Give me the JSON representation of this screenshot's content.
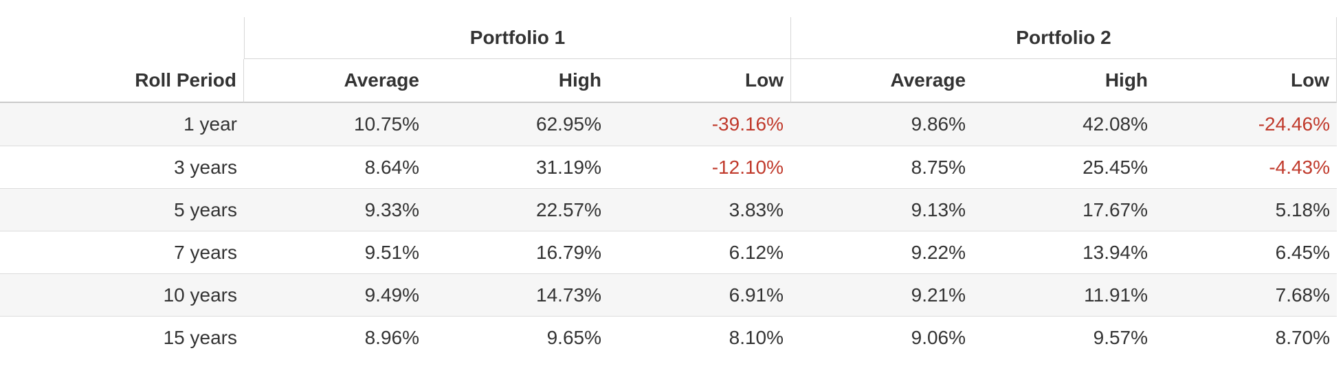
{
  "chart_data": {
    "type": "table",
    "column_groups": [
      {
        "label": "Portfolio 1",
        "span": 3
      },
      {
        "label": "Portfolio 2",
        "span": 3
      }
    ],
    "row_header": "Roll Period",
    "sub_columns": [
      "Average",
      "High",
      "Low",
      "Average",
      "High",
      "Low"
    ],
    "rows": [
      {
        "period": "1 year",
        "values": [
          "10.75%",
          "62.95%",
          "-39.16%",
          "9.86%",
          "42.08%",
          "-24.46%"
        ]
      },
      {
        "period": "3 years",
        "values": [
          "8.64%",
          "31.19%",
          "-12.10%",
          "8.75%",
          "25.45%",
          "-4.43%"
        ]
      },
      {
        "period": "5 years",
        "values": [
          "9.33%",
          "22.57%",
          "3.83%",
          "9.13%",
          "17.67%",
          "5.18%"
        ]
      },
      {
        "period": "7 years",
        "values": [
          "9.51%",
          "16.79%",
          "6.12%",
          "9.22%",
          "13.94%",
          "6.45%"
        ]
      },
      {
        "period": "10 years",
        "values": [
          "9.49%",
          "14.73%",
          "6.91%",
          "9.21%",
          "11.91%",
          "7.68%"
        ]
      },
      {
        "period": "15 years",
        "values": [
          "8.96%",
          "9.65%",
          "8.10%",
          "9.06%",
          "9.57%",
          "8.70%"
        ]
      }
    ]
  },
  "colors": {
    "text": "#333333",
    "negative_value": "#c0392b",
    "alt_row_background": "#f6f6f6",
    "header_divider": "#c9c9c9",
    "header_border": "#d6d6d6",
    "row_divider": "#dcdcdc"
  }
}
